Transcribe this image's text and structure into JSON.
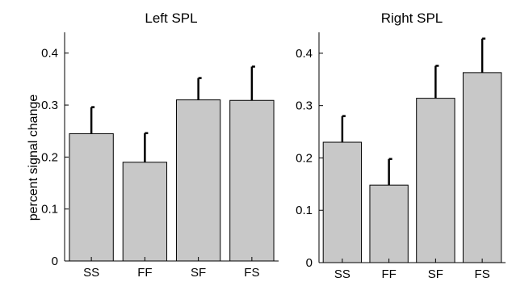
{
  "ylabel": "percent signal change",
  "chart_data": [
    {
      "type": "bar",
      "title": "Left SPL",
      "ylabel": "percent signal change",
      "categories": [
        "SS",
        "FF",
        "SF",
        "FS"
      ],
      "values": [
        0.245,
        0.19,
        0.31,
        0.309
      ],
      "error_upper": [
        0.296,
        0.246,
        0.352,
        0.374
      ],
      "ylim": [
        0,
        0.44
      ],
      "yticks": [
        0,
        0.1,
        0.2,
        0.3,
        0.4
      ],
      "ytick_labels": [
        "0",
        "0.1",
        "0.2",
        "0.3",
        "0.4"
      ],
      "bar_color": "#c8c8c8",
      "grid": false
    },
    {
      "type": "bar",
      "title": "Right SPL",
      "categories": [
        "SS",
        "FF",
        "SF",
        "FS"
      ],
      "values": [
        0.23,
        0.148,
        0.314,
        0.363
      ],
      "error_upper": [
        0.28,
        0.198,
        0.376,
        0.428
      ],
      "ylim": [
        0,
        0.44
      ],
      "yticks": [
        0,
        0.1,
        0.2,
        0.3,
        0.4
      ],
      "ytick_labels": [
        "0",
        "0.1",
        "0.2",
        "0.3",
        "0.4"
      ],
      "bar_color": "#c8c8c8",
      "grid": false
    }
  ]
}
